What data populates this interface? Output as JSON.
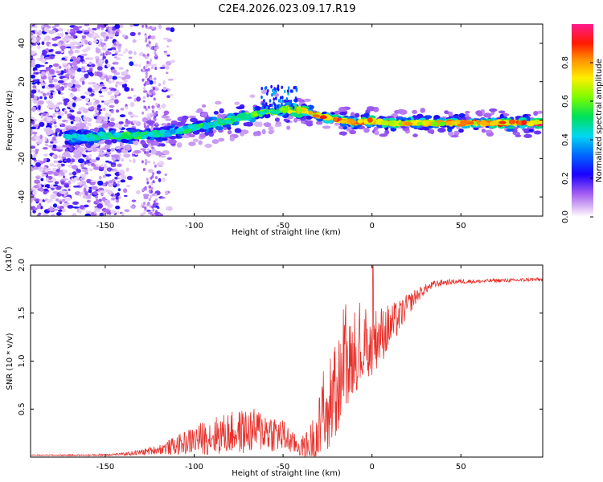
{
  "title": "C2E4.2026.023.09.17.R19",
  "colors": {
    "snr_line": "#e8302a",
    "axis": "#000000"
  },
  "chart_data": [
    {
      "type": "heatmap",
      "xlabel": "Height of straight line (km)",
      "ylabel": "Frequency (Hz)",
      "xlim": [
        -192,
        96
      ],
      "ylim": [
        -50,
        50
      ],
      "xticks": [
        -150,
        -100,
        -50,
        0,
        50
      ],
      "xtick_labels": [
        "-150",
        "-100",
        "-50",
        "0",
        "50"
      ],
      "yticks": [
        -40,
        -20,
        0,
        20,
        40
      ],
      "ytick_labels": [
        "-40",
        "-20",
        "0",
        "20",
        "40"
      ],
      "colorbar": {
        "label": "Normalized spectral amplitude",
        "range": [
          0,
          1
        ],
        "ticks": [
          0.0,
          0.2,
          0.4,
          0.6,
          0.8
        ],
        "tick_labels": [
          "0.0",
          "0.2",
          "0.4",
          "0.6",
          "0.8"
        ],
        "colormap": [
          "#ffffff",
          "#d8b8f0",
          "#8a2be2",
          "#0000ff",
          "#00d8ff",
          "#00e070",
          "#7cfc00",
          "#ffff00",
          "#ff8c00",
          "#ff0000",
          "#ff1493"
        ]
      },
      "ridge": {
        "x": [
          -172,
          -160,
          -150,
          -140,
          -130,
          -120,
          -110,
          -100,
          -90,
          -80,
          -70,
          -60,
          -52,
          -45,
          -40,
          -35,
          -30,
          -25,
          -20,
          -15,
          -10,
          -5,
          0,
          5,
          10,
          20,
          30,
          40,
          50,
          60,
          70,
          80,
          90,
          96
        ],
        "y": [
          -9,
          -9,
          -8,
          -8,
          -8,
          -7,
          -6,
          -4,
          -2,
          0,
          2,
          4,
          5,
          5.5,
          5,
          4,
          2.5,
          1,
          0,
          -0.5,
          -1,
          -1,
          -0.5,
          -1,
          -1.5,
          -1.5,
          -1.5,
          -1.5,
          -1.5,
          -1.5,
          -1.5,
          -1.5,
          -1.5,
          -1.5
        ],
        "amp": [
          0.45,
          0.5,
          0.55,
          0.55,
          0.55,
          0.5,
          0.5,
          0.55,
          0.55,
          0.6,
          0.6,
          0.6,
          0.65,
          0.75,
          0.85,
          0.85,
          0.85,
          0.9,
          0.9,
          0.88,
          0.85,
          0.85,
          0.9,
          0.85,
          0.82,
          0.8,
          0.8,
          0.82,
          0.85,
          0.88,
          0.92,
          0.95,
          0.97,
          0.97
        ]
      }
    },
    {
      "type": "line",
      "xlabel": "Height of straight line (km)",
      "ylabel": "SNR (10 * v/v)",
      "yscale_label": "(x10",
      "yscale_exp": "4",
      "xlim": [
        -192,
        96
      ],
      "ylim": [
        0,
        2.0
      ],
      "xticks": [
        -150,
        -100,
        -50,
        0,
        50
      ],
      "xtick_labels": [
        "-150",
        "-100",
        "-50",
        "0",
        "50"
      ],
      "yticks": [
        0.5,
        1.0,
        1.5,
        2.0
      ],
      "ytick_labels": [
        "0.5",
        "1.0",
        "1.5",
        "2.0"
      ],
      "series": [
        {
          "name": "SNR",
          "x": [
            -192,
            -160,
            -140,
            -130,
            -120,
            -110,
            -100,
            -90,
            -80,
            -70,
            -60,
            -50,
            -45,
            -40,
            -35,
            -30,
            -25,
            -20,
            -15,
            -10,
            -5,
            0,
            5,
            10,
            15,
            20,
            25,
            30,
            35,
            40,
            50,
            60,
            70,
            80,
            90,
            96
          ],
          "base": [
            0.02,
            0.02,
            0.03,
            0.05,
            0.08,
            0.12,
            0.18,
            0.22,
            0.25,
            0.27,
            0.28,
            0.22,
            0.15,
            0.1,
            0.12,
            0.25,
            0.45,
            0.7,
            0.95,
            1.05,
            1.1,
            1.2,
            1.28,
            1.35,
            1.45,
            1.58,
            1.68,
            1.75,
            1.8,
            1.82,
            1.83,
            1.83,
            1.84,
            1.84,
            1.85,
            1.85
          ],
          "scatter": [
            0.005,
            0.008,
            0.015,
            0.03,
            0.05,
            0.1,
            0.15,
            0.2,
            0.22,
            0.24,
            0.22,
            0.18,
            0.12,
            0.1,
            0.2,
            0.4,
            0.55,
            0.5,
            0.45,
            0.38,
            0.35,
            0.35,
            0.3,
            0.25,
            0.18,
            0.12,
            0.08,
            0.05,
            0.04,
            0.03,
            0.025,
            0.02,
            0.02,
            0.02,
            0.02,
            0.02
          ]
        }
      ]
    }
  ]
}
